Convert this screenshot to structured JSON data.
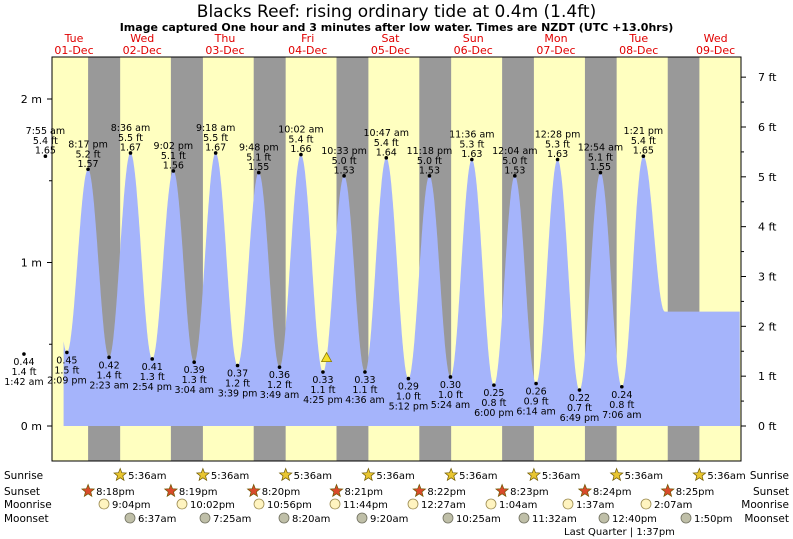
{
  "title": "Blacks Reef: rising  ordinary tide at 0.4m (1.4ft)",
  "subtitle": "Image captured One hour and 3 minutes after low water. Times are NZDT (UTC +13.0hrs)",
  "colors": {
    "tide_fill": "#a5b4fb",
    "day_bg": "#ffffc0",
    "night_bg": "#999999",
    "day_label": "#e00000",
    "marker": "#f5e02a"
  },
  "chart_data": {
    "type": "area",
    "title": "Blacks Reef: rising  ordinary tide at 0.4m (1.4ft)",
    "y_unit_left": "m",
    "y_unit_right": "ft",
    "left_axis_labels": [
      "0 m",
      "1 m",
      "2 m"
    ],
    "right_axis_labels": [
      "0 ft",
      "1 ft",
      "2 ft",
      "3 ft",
      "4 ft",
      "5 ft",
      "6 ft",
      "7 ft"
    ],
    "days": [
      {
        "dow": "Tue",
        "date": "01-Dec"
      },
      {
        "dow": "Wed",
        "date": "02-Dec"
      },
      {
        "dow": "Thu",
        "date": "03-Dec"
      },
      {
        "dow": "Fri",
        "date": "04-Dec"
      },
      {
        "dow": "Sat",
        "date": "05-Dec"
      },
      {
        "dow": "Sun",
        "date": "06-Dec"
      },
      {
        "dow": "Mon",
        "date": "07-Dec"
      },
      {
        "dow": "Tue",
        "date": "08-Dec"
      },
      {
        "dow": "Wed",
        "date": "09-Dec"
      }
    ],
    "extremes": [
      {
        "type": "low",
        "time": "1:42 am",
        "m": 0.44,
        "ft": "1.4 ft",
        "label_m": "0.44"
      },
      {
        "type": "high",
        "time": "7:55 am",
        "m": 1.65,
        "ft": "5.4 ft",
        "label_m": "1.65"
      },
      {
        "type": "low",
        "time": "2:09 pm",
        "m": 0.45,
        "ft": "1.5 ft",
        "label_m": "0.45"
      },
      {
        "type": "high",
        "time": "8:17 pm",
        "m": 1.57,
        "ft": "5.2 ft",
        "label_m": "1.57"
      },
      {
        "type": "low",
        "time": "2:23 am",
        "m": 0.42,
        "ft": "1.4 ft",
        "label_m": "0.42"
      },
      {
        "type": "high",
        "time": "8:36 am",
        "m": 1.67,
        "ft": "5.5 ft",
        "label_m": "1.67"
      },
      {
        "type": "low",
        "time": "2:54 pm",
        "m": 0.41,
        "ft": "1.3 ft",
        "label_m": "0.41"
      },
      {
        "type": "high",
        "time": "9:02 pm",
        "m": 1.56,
        "ft": "5.1 ft",
        "label_m": "1.56"
      },
      {
        "type": "low",
        "time": "3:04 am",
        "m": 0.39,
        "ft": "1.3 ft",
        "label_m": "0.39"
      },
      {
        "type": "high",
        "time": "9:18 am",
        "m": 1.67,
        "ft": "5.5 ft",
        "label_m": "1.67"
      },
      {
        "type": "low",
        "time": "3:39 pm",
        "m": 0.37,
        "ft": "1.2 ft",
        "label_m": "0.37"
      },
      {
        "type": "high",
        "time": "9:48 pm",
        "m": 1.55,
        "ft": "5.1 ft",
        "label_m": "1.55"
      },
      {
        "type": "low",
        "time": "3:49 am",
        "m": 0.36,
        "ft": "1.2 ft",
        "label_m": "0.36"
      },
      {
        "type": "high",
        "time": "10:02 am",
        "m": 1.66,
        "ft": "5.4 ft",
        "label_m": "1.66"
      },
      {
        "type": "low",
        "time": "4:25 pm",
        "m": 0.33,
        "ft": "1.1 ft",
        "label_m": "0.33"
      },
      {
        "type": "high",
        "time": "10:33 pm",
        "m": 1.53,
        "ft": "5.0 ft",
        "label_m": "1.53"
      },
      {
        "type": "low",
        "time": "4:36 am",
        "m": 0.33,
        "ft": "1.1 ft",
        "label_m": "0.33"
      },
      {
        "type": "high",
        "time": "10:47 am",
        "m": 1.64,
        "ft": "5.4 ft",
        "label_m": "1.64"
      },
      {
        "type": "low",
        "time": "5:12 pm",
        "m": 0.29,
        "ft": "1.0 ft",
        "label_m": "0.29"
      },
      {
        "type": "high",
        "time": "11:18 pm",
        "m": 1.53,
        "ft": "5.0 ft",
        "label_m": "1.53"
      },
      {
        "type": "low",
        "time": "5:24 am",
        "m": 0.3,
        "ft": "1.0 ft",
        "label_m": "0.30"
      },
      {
        "type": "high",
        "time": "11:36 am",
        "m": 1.63,
        "ft": "5.3 ft",
        "label_m": "1.63"
      },
      {
        "type": "low",
        "time": "6:00 pm",
        "m": 0.25,
        "ft": "0.8 ft",
        "label_m": "0.25"
      },
      {
        "type": "high",
        "time": "12:04 am",
        "m": 1.53,
        "ft": "5.0 ft",
        "label_m": "1.53"
      },
      {
        "type": "low",
        "time": "6:14 am",
        "m": 0.26,
        "ft": "0.9 ft",
        "label_m": "0.26"
      },
      {
        "type": "high",
        "time": "12:28 pm",
        "m": 1.63,
        "ft": "5.3 ft",
        "label_m": "1.63"
      },
      {
        "type": "low",
        "time": "6:49 pm",
        "m": 0.22,
        "ft": "0.7 ft",
        "label_m": "0.22"
      },
      {
        "type": "high",
        "time": "12:54 am",
        "m": 1.55,
        "ft": "5.1 ft",
        "label_m": "1.55"
      },
      {
        "type": "low",
        "time": "7:06 am",
        "m": 0.24,
        "ft": "0.8 ft",
        "label_m": "0.24"
      },
      {
        "type": "high",
        "time": "1:21 pm",
        "m": 1.65,
        "ft": "5.4 ft",
        "label_m": "1.65"
      }
    ],
    "current": {
      "m": 0.4,
      "ft": 1.4
    },
    "almanac_labels": [
      "Sunrise",
      "Sunset",
      "Moonrise",
      "Moonset"
    ],
    "sunrise": [
      "5:36am",
      "5:36am",
      "5:36am",
      "5:36am",
      "5:36am",
      "5:36am",
      "5:36am",
      "5:36am"
    ],
    "sunset": [
      "8:18pm",
      "8:19pm",
      "8:20pm",
      "8:21pm",
      "8:22pm",
      "8:23pm",
      "8:24pm",
      "8:25pm"
    ],
    "moonrise": [
      "9:04pm",
      "10:02pm",
      "10:56pm",
      "11:44pm",
      "12:27am",
      "1:04am",
      "1:37am",
      "2:07am"
    ],
    "moonset": [
      "6:37am",
      "7:25am",
      "8:20am",
      "9:20am",
      "10:25am",
      "11:32am",
      "12:40pm",
      "1:50pm"
    ],
    "moon_phase_note": "Last Quarter | 1:37pm"
  }
}
